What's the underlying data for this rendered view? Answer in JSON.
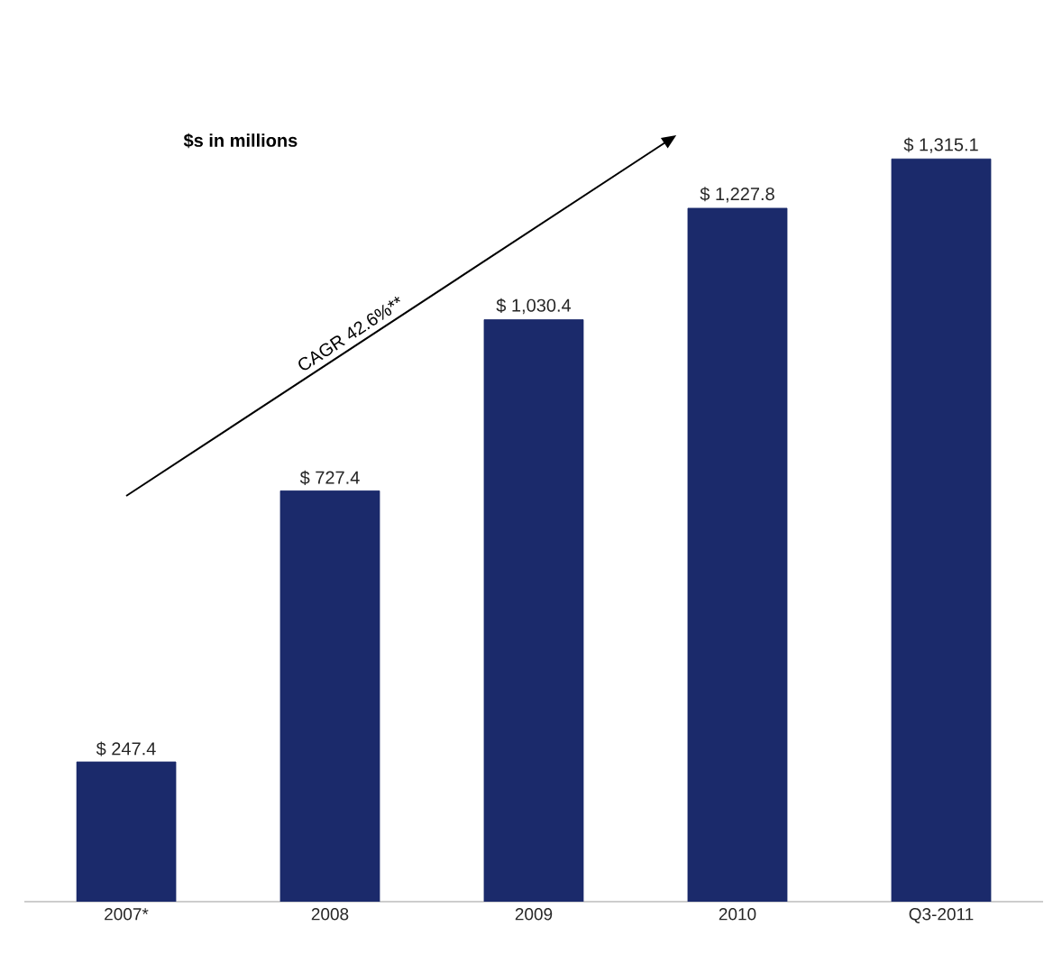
{
  "chart_data": {
    "type": "bar",
    "categories": [
      "2007*",
      "2008",
      "2009",
      "2010",
      "Q3-2011"
    ],
    "values": [
      247.4,
      727.4,
      1030.4,
      1227.8,
      1315.1
    ],
    "value_labels": [
      "$ 247.4",
      "$ 727.4",
      "$ 1,030.4",
      "$ 1,227.8",
      "$ 1,315.1"
    ],
    "color": "#1b2a6b",
    "annotations": [
      "$s in millions",
      "CAGR 42.6%**"
    ]
  }
}
